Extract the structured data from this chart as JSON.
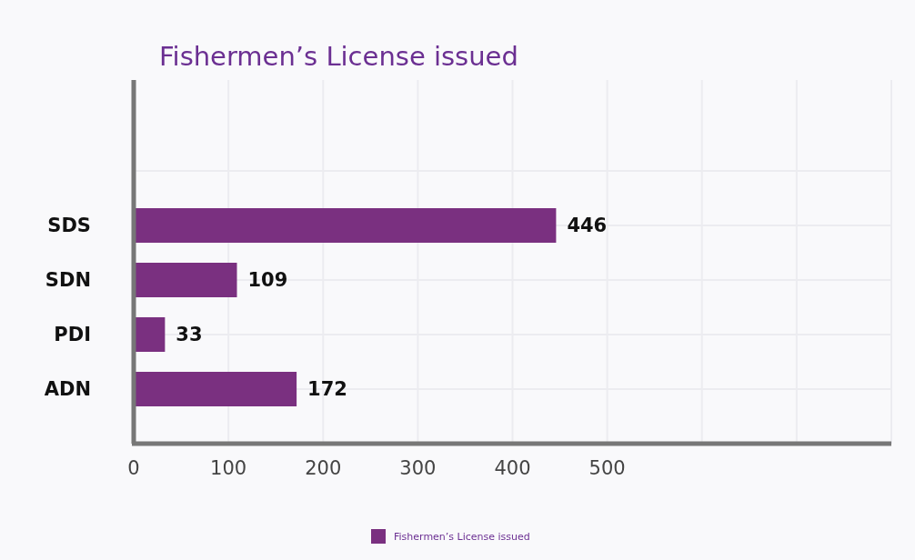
{
  "chart_data": {
    "type": "bar",
    "orientation": "horizontal",
    "title": "Fishermen’s License issued",
    "categories": [
      "SDS",
      "SDN",
      "PDI",
      "ADN"
    ],
    "series": [
      {
        "name": "Fishermen’s License issued",
        "color": "#7a3080",
        "values": [
          446,
          109,
          33,
          172
        ]
      }
    ],
    "xlim": [
      0,
      800
    ],
    "xticks": [
      0,
      100,
      200,
      300,
      400,
      500,
      {
        "value": 600,
        "label": null
      },
      {
        "value": 700,
        "label": null
      },
      {
        "value": 800,
        "label": null
      }
    ],
    "data_labels": true,
    "grid": true,
    "legend": "bottom"
  }
}
